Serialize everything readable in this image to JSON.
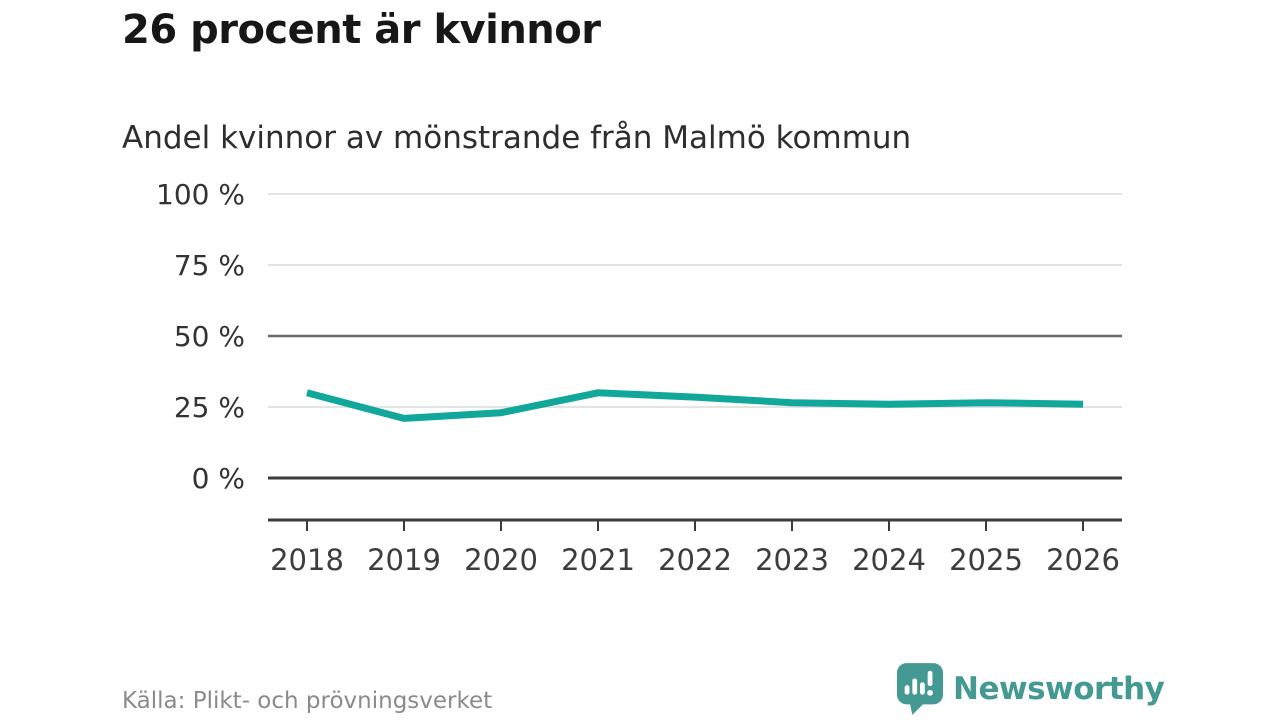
{
  "header": {
    "title": "26 procent är kvinnor",
    "subtitle": "Andel kvinnor av mönstrande från Malmö kommun"
  },
  "chart_data": {
    "type": "line",
    "title": "26 procent är kvinnor",
    "subtitle": "Andel kvinnor av mönstrande från Malmö kommun",
    "x": [
      2018,
      2019,
      2020,
      2021,
      2022,
      2023,
      2024,
      2025,
      2026
    ],
    "series": [
      {
        "name": "Andel kvinnor av mönstrande från Malmö kommun",
        "color": "#11a79b",
        "values": [
          30,
          21,
          23,
          30,
          28.5,
          26.5,
          26,
          26.5,
          26
        ]
      }
    ],
    "unit": "%",
    "ylim": [
      0,
      100
    ],
    "y_ticks": [
      {
        "value": 100,
        "label": "100 %",
        "line": "light"
      },
      {
        "value": 75,
        "label": "75 %",
        "line": "light"
      },
      {
        "value": 50,
        "label": "50 %",
        "line": "mid"
      },
      {
        "value": 25,
        "label": "25 %",
        "line": "light"
      },
      {
        "value": 0,
        "label": "0 %",
        "line": "dark"
      }
    ],
    "grid_on": true,
    "legend": "none",
    "grid_colors": {
      "light": "#e4e4e4",
      "mid": "#6a6a6a",
      "dark": "#3b3b3b"
    },
    "axis_color": "#3b3b3b",
    "y_label_color": "#333333",
    "x_label_color": "#3d3d3d"
  },
  "footer": {
    "source": "Källa: Plikt- och prövningsverket",
    "brand": "Newsworthy",
    "brand_color": "#449992",
    "brand_icon": "newsworthy-speech-bubble-bar-chart-icon",
    "brand_icon_glyph_color": "#ffffff"
  }
}
